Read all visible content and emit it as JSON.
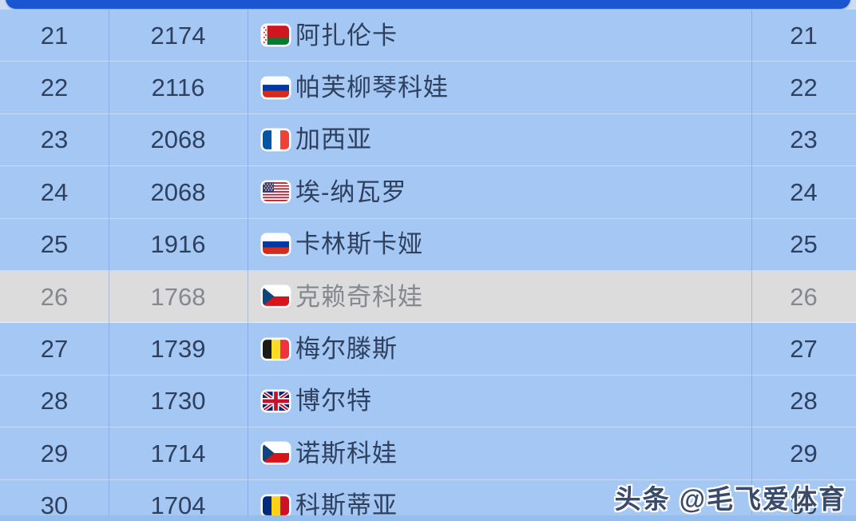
{
  "header": {
    "bar_color": "#1a55d2"
  },
  "colors": {
    "row_blue": "#a4c7f3",
    "highlight_gray": "#dcdcdc",
    "text_dark": "#2f3f5e",
    "text_muted": "#85888e"
  },
  "table": {
    "columns": [
      "rank",
      "points",
      "player",
      "rank"
    ],
    "rows": [
      {
        "rank": "21",
        "points": "2174",
        "country": "belarus",
        "country_flag": "belarus-flag-icon",
        "player": "阿扎伦卡",
        "state": "normal"
      },
      {
        "rank": "22",
        "points": "2116",
        "country": "russia",
        "country_flag": "russia-flag-icon",
        "player": "帕芙柳琴科娃",
        "state": "normal"
      },
      {
        "rank": "23",
        "points": "2068",
        "country": "france",
        "country_flag": "france-flag-icon",
        "player": "加西亚",
        "state": "normal"
      },
      {
        "rank": "24",
        "points": "2068",
        "country": "usa",
        "country_flag": "usa-flag-icon",
        "player": "埃-纳瓦罗",
        "state": "normal"
      },
      {
        "rank": "25",
        "points": "1916",
        "country": "russia",
        "country_flag": "russia-flag-icon",
        "player": "卡林斯卡娅",
        "state": "normal"
      },
      {
        "rank": "26",
        "points": "1768",
        "country": "czech-republic",
        "country_flag": "czech-republic-flag-icon",
        "player": "克赖奇科娃",
        "state": "highlighted"
      },
      {
        "rank": "27",
        "points": "1739",
        "country": "belgium",
        "country_flag": "belgium-flag-icon",
        "player": "梅尔滕斯",
        "state": "normal"
      },
      {
        "rank": "28",
        "points": "1730",
        "country": "united-kingdom",
        "country_flag": "united-kingdom-flag-icon",
        "player": "博尔特",
        "state": "normal"
      },
      {
        "rank": "29",
        "points": "1714",
        "country": "czech-republic",
        "country_flag": "czech-republic-flag-icon",
        "player": "诺斯科娃",
        "state": "normal"
      },
      {
        "rank": "30",
        "points": "1704",
        "country": "romania",
        "country_flag": "romania-flag-icon",
        "player": "科斯蒂亚",
        "state": "normal"
      }
    ]
  },
  "watermark": {
    "text": "头条 @毛飞爱体育"
  }
}
